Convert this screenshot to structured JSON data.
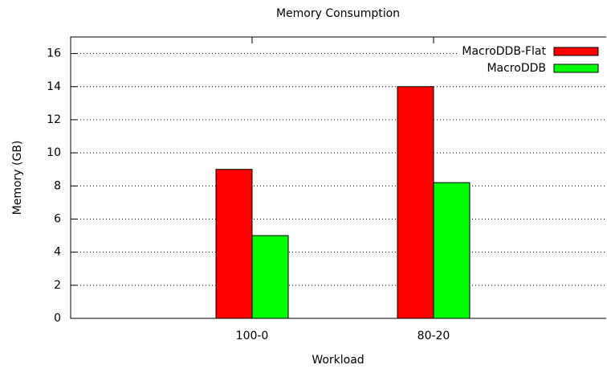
{
  "chart_data": {
    "type": "bar",
    "title": "Memory Consumption",
    "xlabel": "Workload",
    "ylabel": "Memory (GB)",
    "categories": [
      "100-0",
      "80-20"
    ],
    "series": [
      {
        "name": "MacroDDB-Flat",
        "color": "#ff0000",
        "values": [
          9,
          14
        ]
      },
      {
        "name": "MacroDDB",
        "color": "#00ff00",
        "values": [
          5,
          8.2
        ]
      }
    ],
    "ylim": [
      0,
      17
    ],
    "yticks": [
      0,
      2,
      4,
      6,
      8,
      10,
      12,
      14,
      16
    ],
    "grid": true,
    "legend": "top-right"
  }
}
